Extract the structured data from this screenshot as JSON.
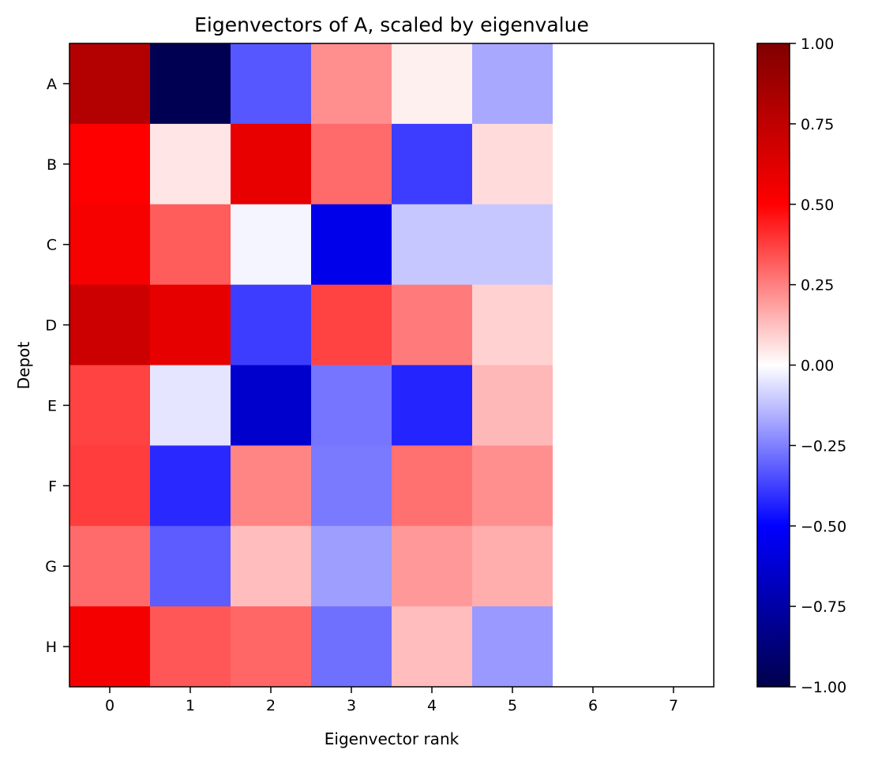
{
  "chart_data": {
    "type": "heatmap",
    "title": "Eigenvectors of A, scaled by eigenvalue",
    "xlabel": "Eigenvector rank",
    "ylabel": "Depot",
    "x_categories": [
      "0",
      "1",
      "2",
      "3",
      "4",
      "5",
      "6",
      "7"
    ],
    "y_categories": [
      "A",
      "B",
      "C",
      "D",
      "E",
      "F",
      "G",
      "H"
    ],
    "values": [
      [
        0.8,
        -0.98,
        -0.33,
        0.22,
        0.03,
        -0.17,
        0.0,
        0.0
      ],
      [
        0.5,
        0.05,
        0.59,
        0.29,
        -0.38,
        0.07,
        0.0,
        0.0
      ],
      [
        0.53,
        0.32,
        -0.02,
        -0.56,
        -0.11,
        -0.11,
        0.0,
        0.0
      ],
      [
        0.7,
        0.6,
        -0.38,
        0.37,
        0.26,
        0.09,
        0.0,
        0.0
      ],
      [
        0.37,
        -0.05,
        -0.64,
        -0.27,
        -0.43,
        0.14,
        0.0,
        0.0
      ],
      [
        0.38,
        -0.42,
        0.24,
        -0.26,
        0.28,
        0.22,
        0.0,
        0.0
      ],
      [
        0.29,
        -0.32,
        0.13,
        -0.19,
        0.2,
        0.16,
        0.0,
        0.0
      ],
      [
        0.54,
        0.33,
        0.3,
        -0.28,
        0.13,
        -0.2,
        0.0,
        0.0
      ]
    ],
    "colormap": "seismic",
    "vmin": -1.0,
    "vmax": 1.0,
    "colorbar": {
      "ticks": [
        1.0,
        0.75,
        0.5,
        0.25,
        0.0,
        -0.25,
        -0.5,
        -0.75,
        -1.0
      ],
      "tick_labels": [
        "1.00",
        "0.75",
        "0.50",
        "0.25",
        "0.00",
        "−0.25",
        "−0.50",
        "−0.75",
        "−1.00"
      ],
      "placement": "right"
    }
  }
}
